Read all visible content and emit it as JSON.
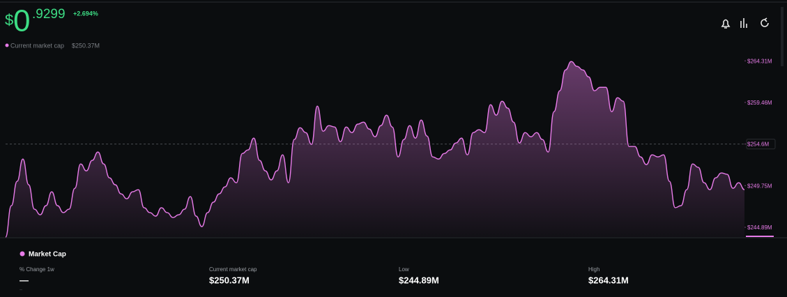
{
  "header": {
    "currency": "$",
    "integer": "0",
    "decimals": ".9299",
    "change": "+2.694%",
    "market_cap_label": "Current market cap",
    "market_cap_value": "$250.37M"
  },
  "chart_data": {
    "type": "area",
    "series": [
      {
        "name": "Market Cap",
        "color": "#e77be8",
        "values": [
          243.75,
          247.41,
          250.25,
          252.85,
          249.85,
          247.0,
          246.35,
          247.41,
          249.03,
          247.41,
          246.6,
          247.0,
          249.44,
          252.28,
          251.47,
          252.69,
          253.67,
          252.28,
          250.66,
          249.85,
          248.79,
          248.22,
          249.03,
          249.28,
          247.17,
          246.6,
          246.19,
          247.17,
          246.6,
          246.03,
          246.35,
          247.0,
          248.47,
          246.19,
          244.97,
          246.6,
          247.82,
          248.79,
          249.6,
          250.66,
          250.09,
          253.5,
          253.91,
          255.29,
          252.69,
          251.47,
          250.42,
          251.47,
          253.34,
          250.09,
          255.13,
          256.51,
          255.94,
          254.56,
          259.03,
          256.1,
          256.75,
          256.59,
          254.88,
          256.59,
          255.94,
          256.92,
          257.16,
          256.35,
          255.45,
          256.75,
          257.97,
          256.59,
          253.1,
          255.13,
          256.75,
          255.29,
          257.4,
          255.54,
          253.1,
          252.85,
          253.5,
          253.91,
          254.72,
          255.29,
          253.34,
          255.94,
          256.27,
          255.94,
          259.19,
          257.97,
          259.6,
          258.79,
          257.16,
          254.72,
          255.94,
          255.45,
          255.94,
          255.13,
          253.67,
          258.38,
          260.82,
          263.25,
          264.23,
          263.66,
          263.25,
          262.44,
          260.82,
          261.22,
          261.22,
          258.38,
          260.0,
          259.6,
          254.32,
          254.32,
          253.1,
          252.2,
          253.34,
          253.1,
          253.34,
          250.25,
          247.17,
          247.41,
          249.28,
          252.28,
          251.88,
          250.09,
          249.28,
          250.66,
          251.23,
          251.07,
          249.44,
          250.09,
          249.28
        ]
      }
    ],
    "ylim": [
      243.75,
      264.9
    ],
    "yticks": [
      {
        "value": 244.89,
        "label": "$244.89M"
      },
      {
        "value": 249.75,
        "label": "$249.75M"
      },
      {
        "value": 254.6,
        "label": "$254.6M"
      },
      {
        "value": 259.46,
        "label": "$259.46M"
      },
      {
        "value": 264.31,
        "label": "$264.31M"
      }
    ],
    "reference_line": 254.6
  },
  "stats": [
    {
      "label": "% Change 1w",
      "value": "—",
      "sub": "--"
    },
    {
      "label": "Current market cap",
      "value": "$250.37M"
    },
    {
      "label": "Low",
      "value": "$244.89M"
    },
    {
      "label": "High",
      "value": "$264.31M"
    }
  ]
}
